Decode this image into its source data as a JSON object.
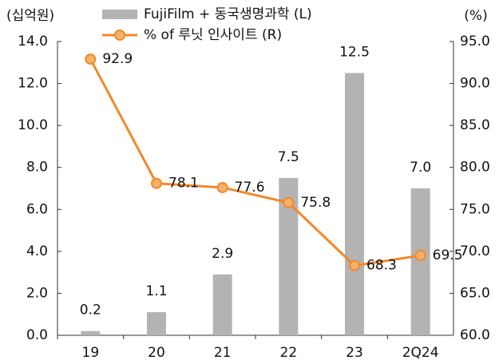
{
  "chart_data": {
    "type": "bar",
    "categories": [
      "19",
      "20",
      "21",
      "22",
      "23",
      "2Q24"
    ],
    "y_label": "(십억원)",
    "y2_label": "(%)",
    "ylim": [
      0,
      14
    ],
    "yticks": [
      {
        "value": 0,
        "label": "0.0"
      },
      {
        "value": 2,
        "label": "2.0"
      },
      {
        "value": 4,
        "label": "4.0"
      },
      {
        "value": 6,
        "label": "6.0"
      },
      {
        "value": 8,
        "label": "8.0"
      },
      {
        "value": 10,
        "label": "10.0"
      },
      {
        "value": 12,
        "label": "12.0"
      },
      {
        "value": 14,
        "label": "14.0"
      }
    ],
    "y2lim": [
      60,
      95
    ],
    "y2ticks": [
      {
        "value": 60,
        "label": "60.0"
      },
      {
        "value": 65,
        "label": "65.0"
      },
      {
        "value": 70,
        "label": "70.0"
      },
      {
        "value": 75,
        "label": "75.0"
      },
      {
        "value": 80,
        "label": "80.0"
      },
      {
        "value": 85,
        "label": "85.0"
      },
      {
        "value": 90,
        "label": "90.0"
      },
      {
        "value": 95,
        "label": "95.0"
      }
    ],
    "legend": "top",
    "series": [
      {
        "name": "FujiFilm + 동국생명과학 (L)",
        "type": "bar",
        "color": "#b3b3b3",
        "values": [
          0.2,
          1.1,
          2.9,
          7.5,
          12.5,
          7.0
        ],
        "value_labels": [
          "0.2",
          "1.1",
          "2.9",
          "7.5",
          "12.5",
          "7.0"
        ]
      },
      {
        "name": "% of 루닛 인사이트 (R)",
        "type": "line",
        "axis": "y2",
        "color": "#f0892b",
        "values": [
          92.9,
          78.1,
          77.6,
          75.8,
          68.3,
          69.5
        ]
      }
    ]
  }
}
